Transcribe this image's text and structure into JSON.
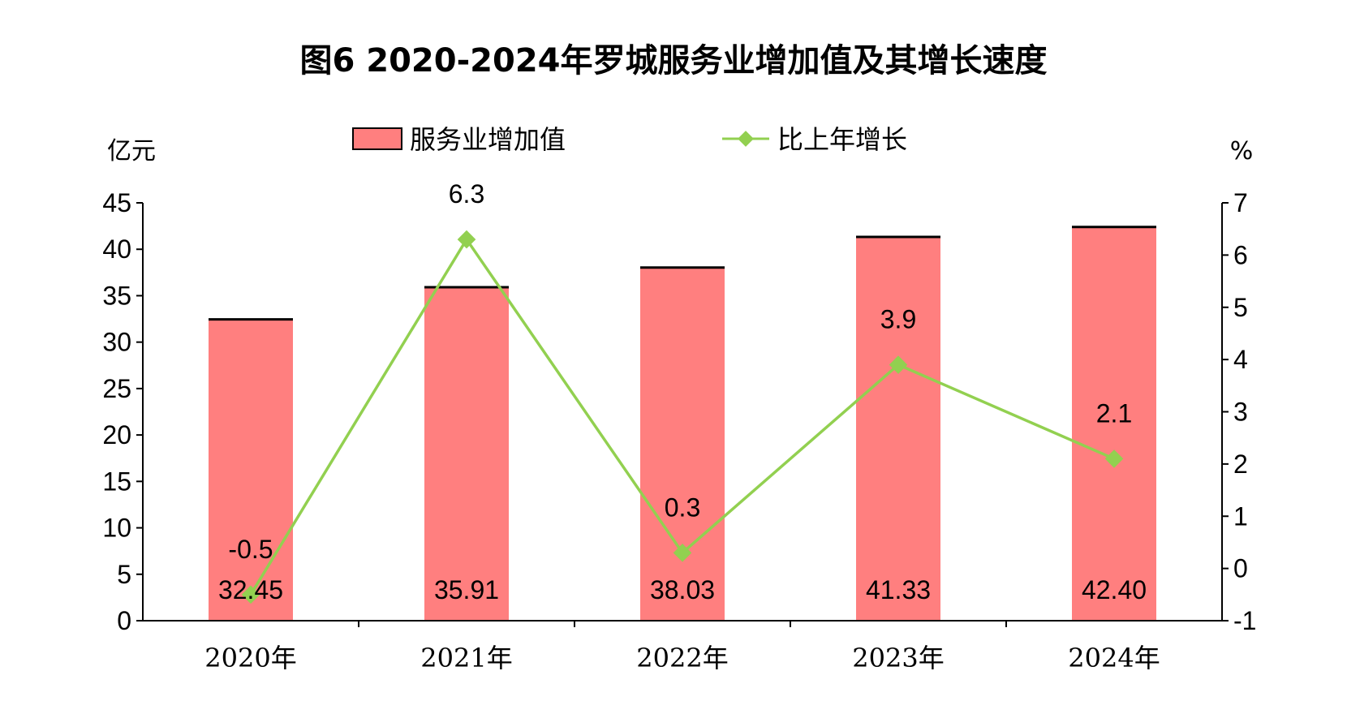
{
  "chart_data": {
    "type": "bar",
    "title": "图6  2020-2024年罗城服务业增加值及其增长速度",
    "y_left_unit": "亿元",
    "y_right_unit": "%",
    "categories": [
      "2020年",
      "2021年",
      "2022年",
      "2023年",
      "2024年"
    ],
    "series": [
      {
        "name": "服务业增加值",
        "type": "bar",
        "axis": "left",
        "values": [
          32.45,
          35.91,
          38.03,
          41.33,
          42.4
        ],
        "labels": [
          "32.45",
          "35.91",
          "38.03",
          "41.33",
          "42.40"
        ],
        "color": "#ff7f7f"
      },
      {
        "name": "比上年增长",
        "type": "line",
        "axis": "right",
        "values": [
          -0.5,
          6.3,
          0.3,
          3.9,
          2.1
        ],
        "labels": [
          "-0.5",
          "6.3",
          "0.3",
          "3.9",
          "2.1"
        ],
        "color": "#92d050"
      }
    ],
    "y_left": {
      "min": 0,
      "max": 45,
      "step": 5,
      "ticks": [
        "0",
        "5",
        "10",
        "15",
        "20",
        "25",
        "30",
        "35",
        "40",
        "45"
      ]
    },
    "y_right": {
      "min": -1,
      "max": 7,
      "step": 1,
      "ticks": [
        "-1",
        "0",
        "1",
        "2",
        "3",
        "4",
        "5",
        "6",
        "7"
      ]
    },
    "legend_position": "top-center",
    "grid": false
  }
}
